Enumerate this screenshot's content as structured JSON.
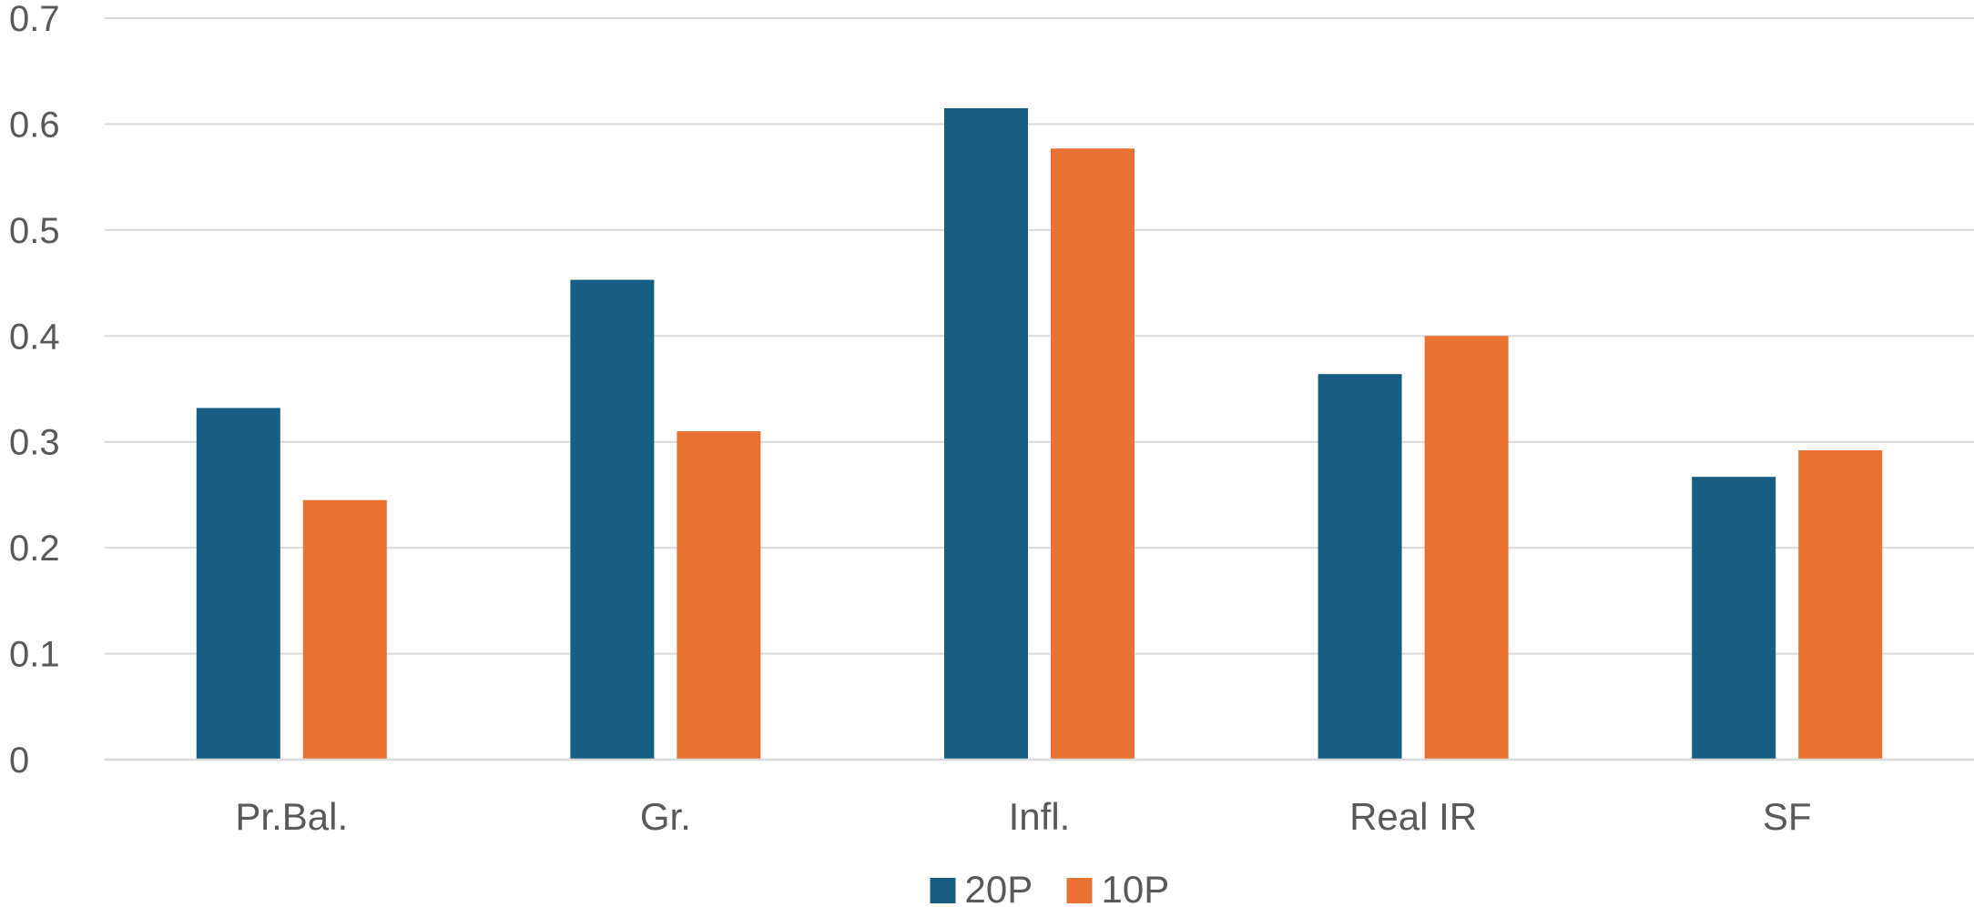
{
  "chart_data": {
    "type": "bar",
    "categories": [
      "Pr.Bal.",
      "Gr.",
      "Infl.",
      "Real IR",
      "SF"
    ],
    "series": [
      {
        "name": "20P",
        "color": "#175f82",
        "values": [
          0.332,
          0.453,
          0.615,
          0.364,
          0.267
        ]
      },
      {
        "name": "10P",
        "color": "#e97132",
        "values": [
          0.245,
          0.31,
          0.577,
          0.4,
          0.292
        ]
      }
    ],
    "yticks": [
      "0",
      "0.1",
      "0.2",
      "0.3",
      "0.4",
      "0.5",
      "0.6",
      "0.7"
    ],
    "ylim": [
      0,
      0.7
    ],
    "grid": true,
    "legend": "bottom-center",
    "title": "",
    "xlabel": "",
    "ylabel": ""
  }
}
